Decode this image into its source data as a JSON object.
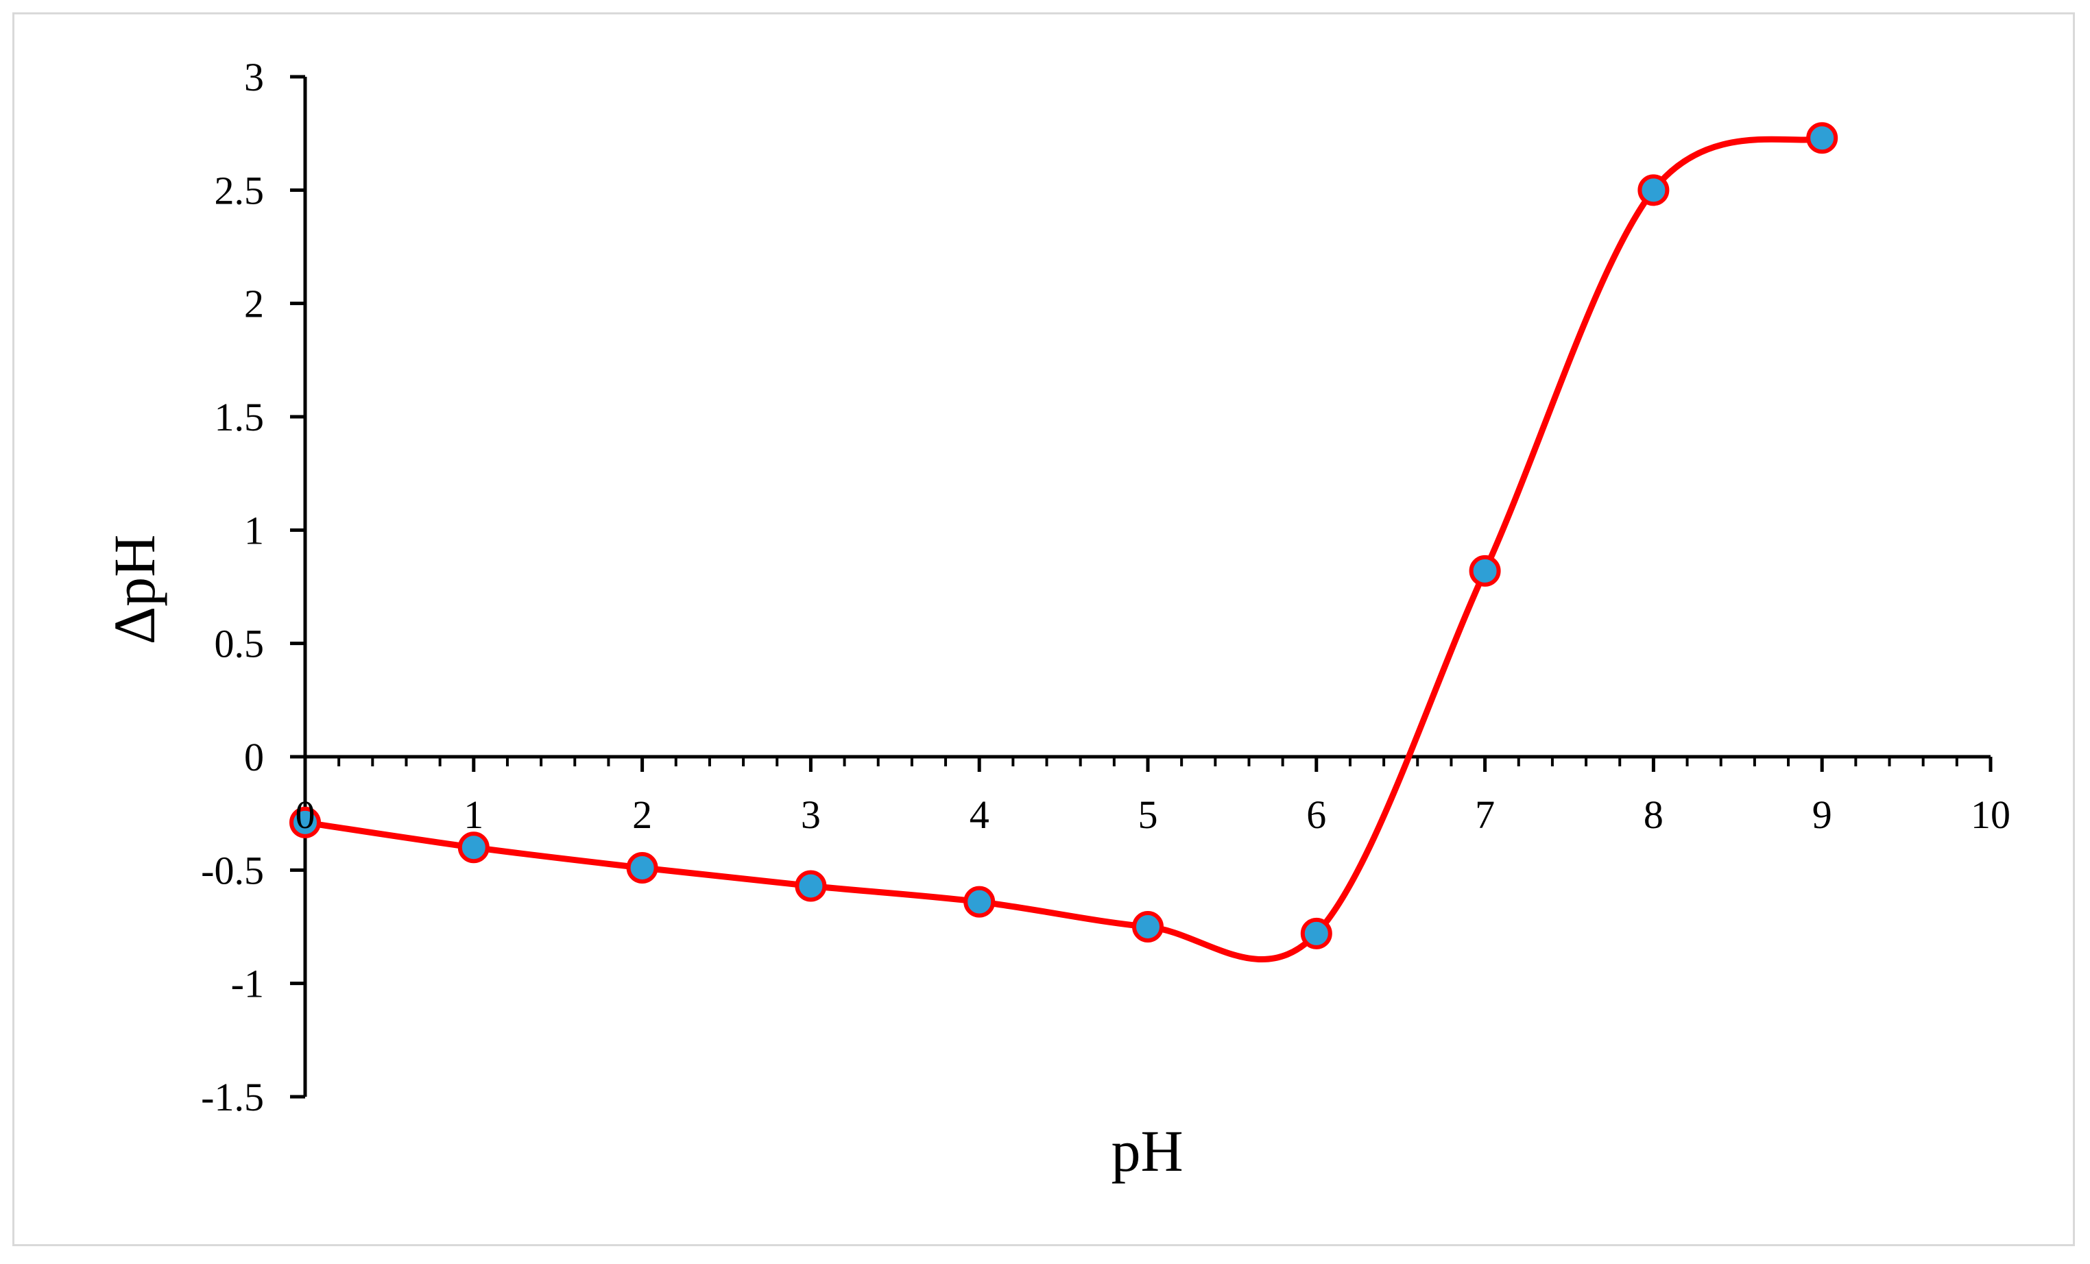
{
  "chart_data": {
    "type": "line",
    "title": "",
    "xlabel": "pH",
    "ylabel": "ΔpH",
    "xlim": [
      0,
      10
    ],
    "ylim": [
      -1.5,
      3
    ],
    "x_ticks": [
      "0",
      "1",
      "2",
      "3",
      "4",
      "5",
      "6",
      "7",
      "8",
      "9",
      "10"
    ],
    "y_ticks": [
      "3",
      "2.5",
      "2",
      "1.5",
      "1",
      "0.5",
      "0",
      "-0.5",
      "-1",
      "-1.5"
    ],
    "x_minor_per_major": 5,
    "smoothed": true,
    "grid": false,
    "series": [
      {
        "x": [
          0,
          1,
          2,
          3,
          4,
          5,
          6,
          7,
          8,
          9
        ],
        "y": [
          -0.29,
          -0.4,
          -0.49,
          -0.57,
          -0.64,
          -0.75,
          -0.78,
          0.82,
          2.5,
          2.73
        ]
      }
    ],
    "colors": {
      "line": "#ff0000",
      "marker_fill": "#2e9fd6",
      "marker_edge": "#ff0000",
      "axis": "#000000",
      "frame": "#d9d9d9"
    }
  }
}
